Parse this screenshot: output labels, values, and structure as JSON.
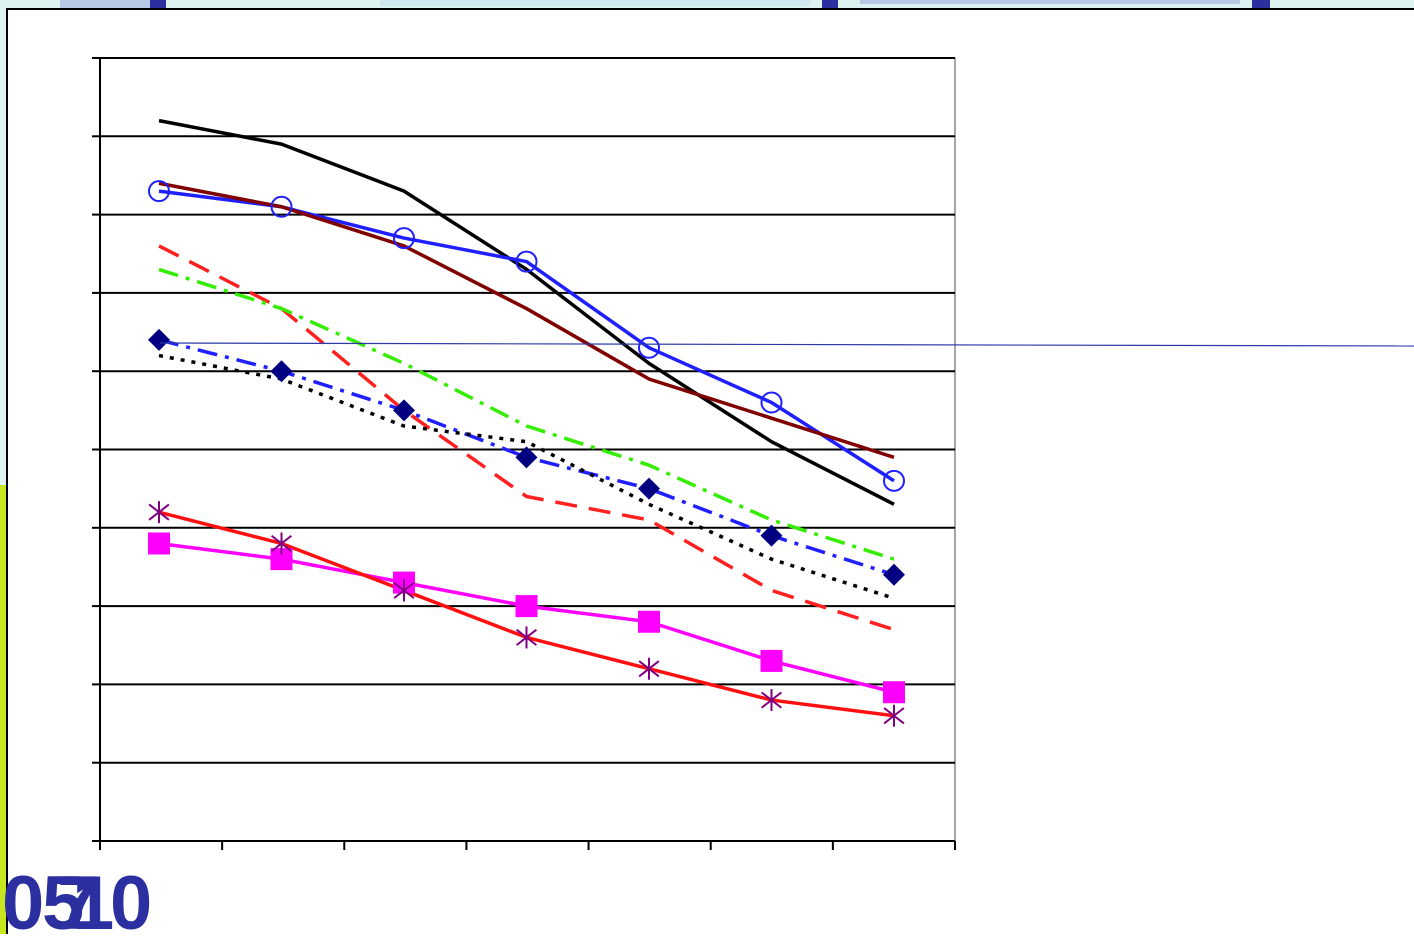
{
  "colors": {
    "background": "#dff2f2",
    "accent_stripe": "#c8e61e",
    "overlapping_labels": "#2b2fa0",
    "pointer_line": "#2b3aa8"
  },
  "overlapping_tick_labels": [
    "0",
    "5",
    "7",
    "1",
    "0"
  ],
  "chart_data": {
    "type": "line",
    "title": "",
    "xlabel": "",
    "ylabel": "",
    "grid": true,
    "legend": "none",
    "x": [
      1,
      2,
      3,
      4,
      5,
      6,
      7
    ],
    "ylim": [
      0,
      100
    ],
    "y_gridlines": 10,
    "x_ticks": 8,
    "series": [
      {
        "color": "#000000",
        "dash": "solid",
        "marker": "none",
        "values": [
          92,
          89,
          83,
          73,
          61,
          51,
          43
        ]
      },
      {
        "color": "#1f1fff",
        "dash": "solid",
        "marker": "circle",
        "values": [
          83,
          81,
          77,
          74,
          63,
          56,
          46
        ]
      },
      {
        "color": "#800000",
        "dash": "solid",
        "marker": "none",
        "values": [
          84,
          81,
          76,
          68,
          59,
          54,
          49
        ]
      },
      {
        "color": "#ff2020",
        "dash": "dashed",
        "marker": "none",
        "values": [
          76,
          68,
          55,
          44,
          41,
          32,
          27
        ]
      },
      {
        "color": "#33ee00",
        "dash": "dashdot",
        "marker": "none",
        "values": [
          73,
          68,
          61,
          53,
          48,
          41,
          36
        ]
      },
      {
        "color": "#1f1fff",
        "dash": "dashdot",
        "marker": "diamond",
        "marker_color": "#000080",
        "values": [
          64,
          60,
          55,
          49,
          45,
          39,
          34
        ]
      },
      {
        "color": "#000000",
        "dash": "dotted",
        "marker": "none",
        "values": [
          62,
          59,
          53,
          51,
          43,
          36,
          31
        ]
      },
      {
        "color": "#ff00ff",
        "dash": "solid",
        "marker": "square",
        "values": [
          38,
          36,
          33,
          30,
          28,
          23,
          19
        ]
      },
      {
        "color": "#ff1010",
        "dash": "solid",
        "marker": "star",
        "marker_color": "#800080",
        "values": [
          42,
          38,
          32,
          26,
          22,
          18,
          16
        ]
      }
    ]
  }
}
